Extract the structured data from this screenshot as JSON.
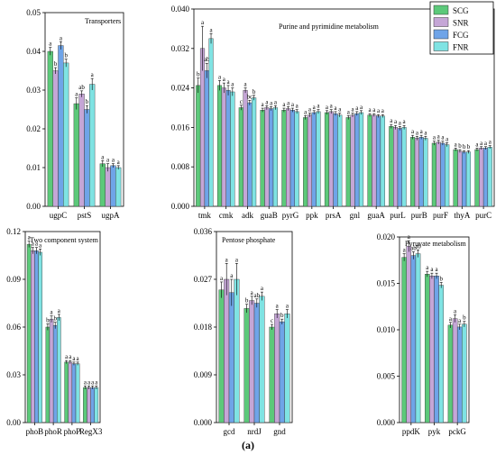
{
  "caption": "(a)",
  "legend": [
    {
      "name": "SCG",
      "color": "#5cc97a"
    },
    {
      "name": "SNR",
      "color": "#c5a6d6"
    },
    {
      "name": "FCG",
      "color": "#6fa4e8"
    },
    {
      "name": "FNR",
      "color": "#7fe3e3"
    }
  ],
  "chart_data": [
    {
      "id": "transporters",
      "type": "bar",
      "title": "Transporters",
      "categories": [
        "ugpC",
        "pstS",
        "ugpA"
      ],
      "series": [
        {
          "name": "SCG",
          "values": [
            0.04,
            0.0265,
            0.011
          ],
          "errors": [
            0.001,
            0.0015,
            0.0008
          ]
        },
        {
          "name": "SNR",
          "values": [
            0.035,
            0.029,
            0.01
          ],
          "errors": [
            0.0008,
            0.0008,
            0.001
          ]
        },
        {
          "name": "FCG",
          "values": [
            0.0415,
            0.025,
            0.0105
          ],
          "errors": [
            0.001,
            0.001,
            0.0005
          ]
        },
        {
          "name": "FNR",
          "values": [
            0.037,
            0.0315,
            0.01
          ],
          "errors": [
            0.001,
            0.0015,
            0.0005
          ]
        }
      ],
      "letters": [
        [
          "a",
          "b",
          "a",
          "b"
        ],
        [
          "a",
          "ab",
          "b",
          "a"
        ],
        [
          "a",
          "a",
          "a",
          "a"
        ]
      ],
      "yticks": [
        "0.00",
        "0.01",
        "0.02",
        "0.03",
        "0.04",
        "0.05"
      ],
      "ylim": [
        0,
        0.05
      ]
    },
    {
      "id": "purine",
      "type": "bar",
      "title": "Purine and pyrimidine metabolism",
      "categories": [
        "tmk",
        "cmk",
        "adk",
        "guaB",
        "pyrG",
        "ppk",
        "prsA",
        "gnl",
        "guaA",
        "purL",
        "purB",
        "purF",
        "thyA",
        "purC"
      ],
      "series": [
        {
          "name": "SCG",
          "values": [
            0.0245,
            0.0245,
            0.02,
            0.0195,
            0.0195,
            0.018,
            0.019,
            0.018,
            0.0185,
            0.0162,
            0.014,
            0.0128,
            0.0115,
            0.0115
          ],
          "errors": [
            0.0015,
            0.001,
            0.0005,
            0.0004,
            0.0004,
            0.0004,
            0.0004,
            0.0004,
            0.0003,
            0.0004,
            0.0004,
            0.0004,
            0.0003,
            0.0003
          ]
        },
        {
          "name": "SNR",
          "values": [
            0.032,
            0.024,
            0.0235,
            0.02,
            0.0198,
            0.0185,
            0.0192,
            0.0185,
            0.0185,
            0.016,
            0.0138,
            0.013,
            0.0112,
            0.0118
          ],
          "errors": [
            0.0045,
            0.001,
            0.0005,
            0.0004,
            0.0004,
            0.0004,
            0.0004,
            0.0004,
            0.0003,
            0.0004,
            0.0004,
            0.0004,
            0.0003,
            0.0003
          ]
        },
        {
          "name": "FCG",
          "values": [
            0.0275,
            0.0235,
            0.021,
            0.0198,
            0.0195,
            0.019,
            0.0188,
            0.0188,
            0.0183,
            0.0158,
            0.014,
            0.0128,
            0.011,
            0.0118
          ],
          "errors": [
            0.0015,
            0.001,
            0.0005,
            0.0004,
            0.0004,
            0.0004,
            0.0004,
            0.0004,
            0.0003,
            0.0004,
            0.0004,
            0.0004,
            0.0003,
            0.0003
          ]
        },
        {
          "name": "FNR",
          "values": [
            0.034,
            0.0232,
            0.022,
            0.02,
            0.0192,
            0.0192,
            0.0185,
            0.019,
            0.0183,
            0.016,
            0.0138,
            0.0125,
            0.011,
            0.012
          ],
          "errors": [
            0.001,
            0.0008,
            0.0005,
            0.0004,
            0.0004,
            0.0004,
            0.0004,
            0.0004,
            0.0003,
            0.0004,
            0.0004,
            0.0004,
            0.0003,
            0.0003
          ]
        }
      ],
      "letters": [
        [
          "b",
          "a",
          "ab",
          "a"
        ],
        [
          "a",
          "a",
          "a",
          "a"
        ],
        [
          "c",
          "a",
          "bc",
          "b"
        ],
        [
          "a",
          "a",
          "a",
          "a"
        ],
        [
          "a",
          "a",
          "a",
          "a"
        ],
        [
          "a",
          "a",
          "a",
          "a"
        ],
        [
          "a",
          "a",
          "a",
          "a"
        ],
        [
          "a",
          "a",
          "a",
          "a"
        ],
        [
          "a",
          "a",
          "a",
          "a"
        ],
        [
          "a",
          "a",
          "a",
          "a"
        ],
        [
          "a",
          "a",
          "a",
          "a"
        ],
        [
          "a",
          "a",
          "a",
          "a"
        ],
        [
          "a",
          "b",
          "b",
          "b"
        ],
        [
          "a",
          "a",
          "a",
          "a"
        ]
      ],
      "yticks": [
        "0.000",
        "0.008",
        "0.016",
        "0.024",
        "0.032",
        "0.040"
      ],
      "ylim": [
        0,
        0.04
      ]
    },
    {
      "id": "twocomp",
      "type": "bar",
      "title": "Two component system",
      "categories": [
        "phoB",
        "phoR",
        "phoP",
        "RegX3"
      ],
      "series": [
        {
          "name": "SCG",
          "values": [
            0.112,
            0.06,
            0.038,
            0.022
          ],
          "errors": [
            0.002,
            0.002,
            0.001,
            0.001
          ]
        },
        {
          "name": "SNR",
          "values": [
            0.108,
            0.065,
            0.038,
            0.022
          ],
          "errors": [
            0.002,
            0.002,
            0.001,
            0.001
          ]
        },
        {
          "name": "FCG",
          "values": [
            0.108,
            0.061,
            0.037,
            0.022
          ],
          "errors": [
            0.002,
            0.002,
            0.001,
            0.001
          ]
        },
        {
          "name": "FNR",
          "values": [
            0.107,
            0.066,
            0.037,
            0.022
          ],
          "errors": [
            0.002,
            0.002,
            0.001,
            0.001
          ]
        }
      ],
      "letters": [
        [
          "a",
          "a",
          "a",
          "a"
        ],
        [
          "b",
          "a",
          "b",
          "a"
        ],
        [
          "a",
          "a",
          "a",
          "a"
        ],
        [
          "a",
          "a",
          "a",
          "a"
        ]
      ],
      "yticks": [
        "0.00",
        "0.03",
        "0.06",
        "0.09",
        "0.12"
      ],
      "ylim": [
        0,
        0.12
      ]
    },
    {
      "id": "pentose",
      "type": "bar",
      "title": "Pentose phosphate",
      "categories": [
        "gcd",
        "nrdJ",
        "gnd"
      ],
      "series": [
        {
          "name": "SCG",
          "values": [
            0.025,
            0.0215,
            0.018
          ],
          "errors": [
            0.0015,
            0.0008,
            0.0005
          ]
        },
        {
          "name": "SNR",
          "values": [
            0.027,
            0.023,
            0.0205
          ],
          "errors": [
            0.003,
            0.0008,
            0.0008
          ]
        },
        {
          "name": "FCG",
          "values": [
            0.0245,
            0.0225,
            0.019
          ],
          "errors": [
            0.0025,
            0.0008,
            0.0005
          ]
        },
        {
          "name": "FNR",
          "values": [
            0.027,
            0.0238,
            0.0205
          ],
          "errors": [
            0.003,
            0.0008,
            0.0008
          ]
        }
      ],
      "letters": [
        [
          "a",
          "a",
          "a",
          "a"
        ],
        [
          "b",
          "a",
          "ab",
          "a"
        ],
        [
          "c",
          "a",
          "b",
          "a"
        ]
      ],
      "yticks": [
        "0.000",
        "0.009",
        "0.018",
        "0.027",
        "0.036"
      ],
      "ylim": [
        0,
        0.036
      ]
    },
    {
      "id": "pyruvate",
      "type": "bar",
      "title": "Pyruvate metabolism",
      "categories": [
        "ppdK",
        "pyk",
        "pckG"
      ],
      "series": [
        {
          "name": "SCG",
          "values": [
            0.0178,
            0.016,
            0.0105
          ],
          "errors": [
            0.0004,
            0.0003,
            0.0003
          ]
        },
        {
          "name": "SNR",
          "values": [
            0.019,
            0.0158,
            0.0112
          ],
          "errors": [
            0.0006,
            0.0003,
            0.0004
          ]
        },
        {
          "name": "FCG",
          "values": [
            0.018,
            0.0158,
            0.0103
          ],
          "errors": [
            0.0004,
            0.0003,
            0.0003
          ]
        },
        {
          "name": "FNR",
          "values": [
            0.0182,
            0.0148,
            0.0106
          ],
          "errors": [
            0.0004,
            0.0003,
            0.0003
          ]
        }
      ],
      "letters": [
        [
          "a",
          "a",
          "ab",
          "ab"
        ],
        [
          "a",
          "a",
          "a",
          "b"
        ],
        [
          "a",
          "a",
          "a",
          "b"
        ]
      ],
      "yticks": [
        "0.000",
        "0.005",
        "0.010",
        "0.015",
        "0.020"
      ],
      "ylim": [
        0,
        0.02
      ]
    }
  ]
}
